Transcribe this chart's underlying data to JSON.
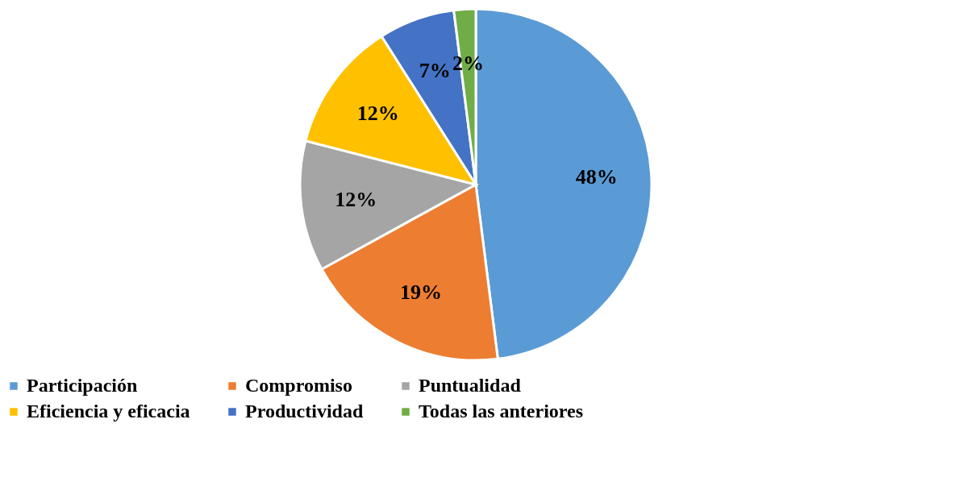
{
  "chart_data": {
    "type": "pie",
    "categories": [
      "Participación",
      "Compromiso",
      "Puntualidad",
      "Eficiencia y eficacia",
      "Productividad",
      "Todas las anteriores"
    ],
    "values": [
      48,
      19,
      12,
      12,
      7,
      2
    ],
    "value_labels": [
      "48%",
      "19%",
      "12%",
      "12%",
      "7%",
      "2%"
    ],
    "colors": [
      "#5b9bd5",
      "#ed7d31",
      "#a5a5a5",
      "#ffc000",
      "#4472c4",
      "#70ad47"
    ],
    "legend": "bottom"
  }
}
